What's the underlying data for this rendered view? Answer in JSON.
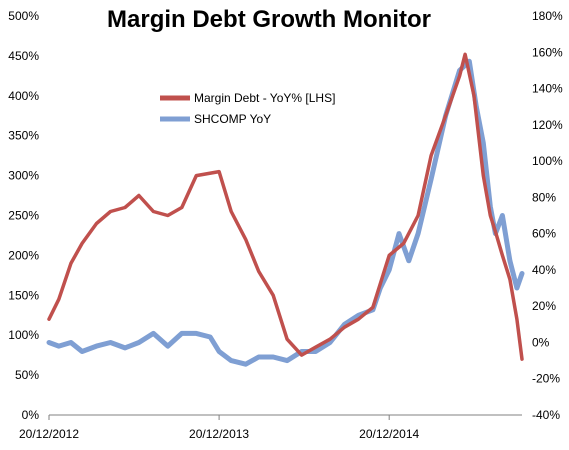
{
  "chart_data": {
    "type": "line",
    "title": "Margin Debt Growth Monitor",
    "x_ticks": [
      "20/12/2012",
      "20/12/2013",
      "20/12/2014"
    ],
    "left_axis": {
      "min": 0,
      "max": 500,
      "step": 50,
      "format": "percent",
      "ticks": [
        "0%",
        "50%",
        "100%",
        "150%",
        "200%",
        "250%",
        "300%",
        "350%",
        "400%",
        "450%",
        "500%"
      ]
    },
    "right_axis": {
      "min": -40,
      "max": 180,
      "step": 20,
      "format": "percent",
      "ticks": [
        "-40%",
        "-20%",
        "0%",
        "20%",
        "40%",
        "60%",
        "80%",
        "100%",
        "120%",
        "140%",
        "160%",
        "180%"
      ]
    },
    "grid": false,
    "legend": {
      "placement": "upper-left-center",
      "entries": [
        {
          "name": "Margin Debt - YoY% [LHS]",
          "color": "#C0504D"
        },
        {
          "name": "SHCOMP YoY",
          "color": "#7F9FD3"
        }
      ]
    },
    "series": [
      {
        "name": "Margin Debt - YoY% [LHS]",
        "axis": "left",
        "color": "#C0504D",
        "x": [
          "2012-12-20",
          "2013-01-10",
          "2013-02-05",
          "2013-03-01",
          "2013-04-01",
          "2013-05-01",
          "2013-06-01",
          "2013-07-01",
          "2013-08-01",
          "2013-09-01",
          "2013-10-01",
          "2013-11-01",
          "2013-12-20",
          "2014-01-15",
          "2014-02-15",
          "2014-03-15",
          "2014-04-15",
          "2014-05-15",
          "2014-06-15",
          "2014-07-15",
          "2014-08-15",
          "2014-09-15",
          "2014-10-15",
          "2014-11-15",
          "2014-12-20",
          "2015-01-20",
          "2015-02-20",
          "2015-03-20",
          "2015-04-20",
          "2015-05-20",
          "2015-06-01",
          "2015-06-20",
          "2015-07-10",
          "2015-07-25",
          "2015-08-05",
          "2015-08-20",
          "2015-09-05",
          "2015-09-20",
          "2015-10-01"
        ],
        "values": [
          120,
          145,
          190,
          215,
          240,
          255,
          260,
          275,
          255,
          250,
          260,
          300,
          305,
          255,
          220,
          180,
          150,
          95,
          75,
          85,
          95,
          110,
          120,
          135,
          200,
          215,
          250,
          325,
          375,
          425,
          452,
          400,
          300,
          250,
          230,
          200,
          170,
          120,
          70
        ]
      },
      {
        "name": "SHCOMP YoY",
        "axis": "right",
        "color": "#7F9FD3",
        "x": [
          "2012-12-20",
          "2013-01-10",
          "2013-02-05",
          "2013-03-01",
          "2013-04-01",
          "2013-05-01",
          "2013-06-01",
          "2013-07-01",
          "2013-08-01",
          "2013-09-01",
          "2013-10-01",
          "2013-11-01",
          "2013-12-01",
          "2013-12-20",
          "2014-01-15",
          "2014-02-15",
          "2014-03-15",
          "2014-04-15",
          "2014-05-15",
          "2014-06-15",
          "2014-07-15",
          "2014-08-15",
          "2014-09-15",
          "2014-10-15",
          "2014-11-15",
          "2014-12-01",
          "2014-12-20",
          "2015-01-10",
          "2015-01-31",
          "2015-02-20",
          "2015-03-20",
          "2015-04-20",
          "2015-05-20",
          "2015-06-10",
          "2015-06-25",
          "2015-07-10",
          "2015-07-25",
          "2015-08-05",
          "2015-08-20",
          "2015-09-05",
          "2015-09-20",
          "2015-10-01"
        ],
        "values": [
          0,
          -2,
          0,
          -5,
          -2,
          0,
          -3,
          0,
          5,
          -2,
          5,
          5,
          3,
          -5,
          -10,
          -12,
          -8,
          -8,
          -10,
          -5,
          -5,
          0,
          10,
          15,
          18,
          30,
          40,
          60,
          45,
          60,
          90,
          125,
          150,
          155,
          130,
          110,
          75,
          60,
          70,
          45,
          30,
          38
        ]
      }
    ]
  }
}
